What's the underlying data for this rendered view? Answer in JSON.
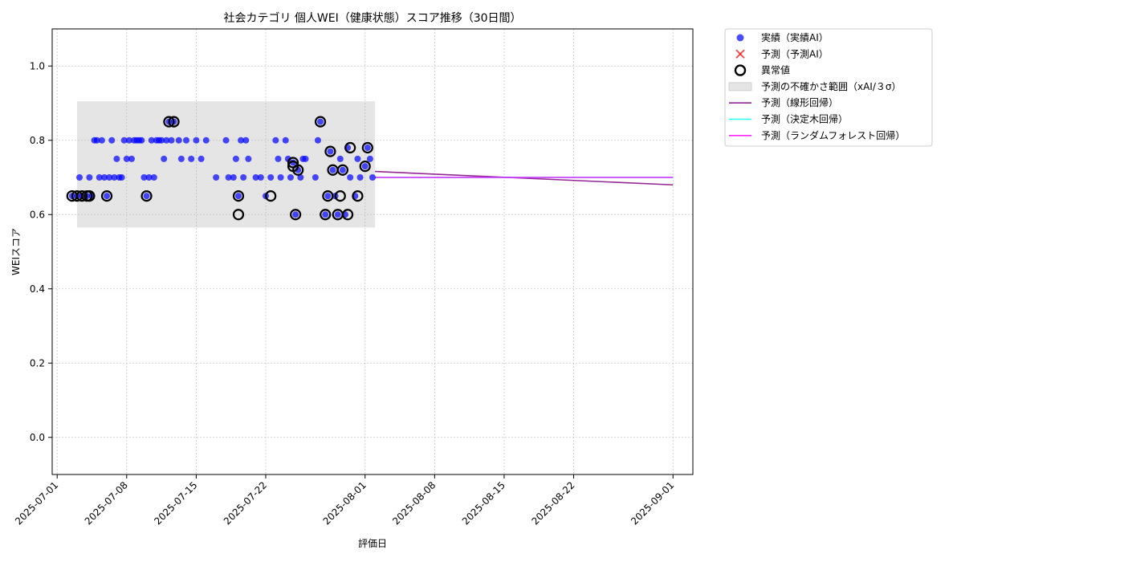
{
  "chart_data": {
    "type": "scatter",
    "title": "社会カテゴリ 個人WEI（健康状態）スコア推移（30日間）",
    "xlabel": "評価日",
    "ylabel": "WEIスコア",
    "xlim": [
      "2025-06-30T12:00",
      "2025-09-03T00:00"
    ],
    "ylim": [
      -0.1,
      1.1
    ],
    "y_ticks": [
      0.0,
      0.2,
      0.4,
      0.6,
      0.8,
      1.0
    ],
    "y_tick_labels": [
      "0.0",
      "0.2",
      "0.4",
      "0.6",
      "0.8",
      "1.0"
    ],
    "x_ticks": [
      "2025-07-01",
      "2025-07-08",
      "2025-07-15",
      "2025-07-22",
      "2025-08-01",
      "2025-08-08",
      "2025-08-15",
      "2025-08-22",
      "2025-09-01"
    ],
    "x_tick_labels": [
      "2025-07-01",
      "2025-07-08",
      "2025-07-15",
      "2025-07-22",
      "2025-08-01",
      "2025-08-08",
      "2025-08-15",
      "2025-08-22",
      "2025-09-01"
    ],
    "grid": true,
    "legend_position": "outside-right-top",
    "colors": {
      "actual": "#0000ff",
      "predicted": "#ff0000",
      "anomaly": "#000000",
      "band": "#d3d3d3",
      "linear": "#800080",
      "tree": "#00ffff",
      "forest": "#ff00ff"
    },
    "legend": [
      {
        "key": "actual",
        "label": "実績（実績AI）",
        "marker": "dot"
      },
      {
        "key": "predicted",
        "label": "予測（予測AI）",
        "marker": "x"
      },
      {
        "key": "anomaly",
        "label": "異常値",
        "marker": "ring"
      },
      {
        "key": "band",
        "label": "予測の不確かさ範囲（xAI/３σ）",
        "marker": "patch"
      },
      {
        "key": "linear",
        "label": "予測（線形回帰）",
        "marker": "line"
      },
      {
        "key": "tree",
        "label": "予測（決定木回帰）",
        "marker": "line"
      },
      {
        "key": "forest",
        "label": "予測（ランダムフォレスト回帰）",
        "marker": "line"
      }
    ],
    "uncertainty_band": {
      "x_start": "2025-07-03",
      "x_end": "2025-08-02",
      "y_low": 0.565,
      "y_high": 0.905
    },
    "series": [
      {
        "name": "実績（実績AI）",
        "type": "scatter",
        "points": [
          [
            "2025-07-02T12:00",
            0.65
          ],
          [
            "2025-07-03T00:00",
            0.65
          ],
          [
            "2025-07-03T06:00",
            0.7
          ],
          [
            "2025-07-03T12:00",
            0.65
          ],
          [
            "2025-07-04T00:00",
            0.65
          ],
          [
            "2025-07-04T06:00",
            0.7
          ],
          [
            "2025-07-04T12:00",
            0.65
          ],
          [
            "2025-07-04T18:00",
            0.8
          ],
          [
            "2025-07-05T00:00",
            0.8
          ],
          [
            "2025-07-05T06:00",
            0.7
          ],
          [
            "2025-07-05T12:00",
            0.8
          ],
          [
            "2025-07-05T18:00",
            0.7
          ],
          [
            "2025-07-06T00:00",
            0.65
          ],
          [
            "2025-07-06T06:00",
            0.7
          ],
          [
            "2025-07-06T12:00",
            0.8
          ],
          [
            "2025-07-06T18:00",
            0.7
          ],
          [
            "2025-07-07T00:00",
            0.75
          ],
          [
            "2025-07-07T06:00",
            0.7
          ],
          [
            "2025-07-07T12:00",
            0.7
          ],
          [
            "2025-07-07T18:00",
            0.8
          ],
          [
            "2025-07-08T00:00",
            0.75
          ],
          [
            "2025-07-08T06:00",
            0.8
          ],
          [
            "2025-07-08T12:00",
            0.75
          ],
          [
            "2025-07-08T18:00",
            0.8
          ],
          [
            "2025-07-09T00:00",
            0.8
          ],
          [
            "2025-07-09T06:00",
            0.8
          ],
          [
            "2025-07-09T12:00",
            0.8
          ],
          [
            "2025-07-09T18:00",
            0.7
          ],
          [
            "2025-07-10T00:00",
            0.65
          ],
          [
            "2025-07-10T06:00",
            0.7
          ],
          [
            "2025-07-10T12:00",
            0.8
          ],
          [
            "2025-07-10T18:00",
            0.7
          ],
          [
            "2025-07-11T00:00",
            0.8
          ],
          [
            "2025-07-11T06:00",
            0.8
          ],
          [
            "2025-07-11T12:00",
            0.8
          ],
          [
            "2025-07-11T18:00",
            0.75
          ],
          [
            "2025-07-12T00:00",
            0.8
          ],
          [
            "2025-07-12T06:00",
            0.85
          ],
          [
            "2025-07-12T12:00",
            0.8
          ],
          [
            "2025-07-12T18:00",
            0.85
          ],
          [
            "2025-07-13T06:00",
            0.8
          ],
          [
            "2025-07-13T12:00",
            0.75
          ],
          [
            "2025-07-14T00:00",
            0.8
          ],
          [
            "2025-07-14T12:00",
            0.75
          ],
          [
            "2025-07-15T00:00",
            0.8
          ],
          [
            "2025-07-15T12:00",
            0.75
          ],
          [
            "2025-07-16T00:00",
            0.8
          ],
          [
            "2025-07-17T00:00",
            0.7
          ],
          [
            "2025-07-18T00:00",
            0.8
          ],
          [
            "2025-07-18T06:00",
            0.7
          ],
          [
            "2025-07-18T18:00",
            0.7
          ],
          [
            "2025-07-19T00:00",
            0.75
          ],
          [
            "2025-07-19T06:00",
            0.65
          ],
          [
            "2025-07-19T12:00",
            0.8
          ],
          [
            "2025-07-19T18:00",
            0.7
          ],
          [
            "2025-07-20T00:00",
            0.8
          ],
          [
            "2025-07-20T06:00",
            0.75
          ],
          [
            "2025-07-21T00:00",
            0.7
          ],
          [
            "2025-07-21T12:00",
            0.7
          ],
          [
            "2025-07-22T00:00",
            0.65
          ],
          [
            "2025-07-22T12:00",
            0.7
          ],
          [
            "2025-07-23T00:00",
            0.8
          ],
          [
            "2025-07-23T06:00",
            0.75
          ],
          [
            "2025-07-23T12:00",
            0.7
          ],
          [
            "2025-07-24T00:00",
            0.8
          ],
          [
            "2025-07-24T06:00",
            0.75
          ],
          [
            "2025-07-24T12:00",
            0.7
          ],
          [
            "2025-07-24T18:00",
            0.74
          ],
          [
            "2025-07-25T00:00",
            0.6
          ],
          [
            "2025-07-25T06:00",
            0.72
          ],
          [
            "2025-07-25T12:00",
            0.7
          ],
          [
            "2025-07-25T18:00",
            0.75
          ],
          [
            "2025-07-26T00:00",
            0.75
          ],
          [
            "2025-07-27T00:00",
            0.7
          ],
          [
            "2025-07-27T06:00",
            0.8
          ],
          [
            "2025-07-27T12:00",
            0.85
          ],
          [
            "2025-07-28T00:00",
            0.6
          ],
          [
            "2025-07-28T06:00",
            0.65
          ],
          [
            "2025-07-28T12:00",
            0.77
          ],
          [
            "2025-07-28T18:00",
            0.72
          ],
          [
            "2025-07-29T00:00",
            0.65
          ],
          [
            "2025-07-29T06:00",
            0.6
          ],
          [
            "2025-07-29T12:00",
            0.75
          ],
          [
            "2025-07-29T18:00",
            0.72
          ],
          [
            "2025-07-30T00:00",
            0.6
          ],
          [
            "2025-07-30T06:00",
            0.78
          ],
          [
            "2025-07-30T12:00",
            0.7
          ],
          [
            "2025-07-31T00:00",
            0.65
          ],
          [
            "2025-07-31T06:00",
            0.75
          ],
          [
            "2025-07-31T12:00",
            0.7
          ],
          [
            "2025-08-01T00:00",
            0.73
          ],
          [
            "2025-08-01T06:00",
            0.78
          ],
          [
            "2025-08-01T12:00",
            0.75
          ],
          [
            "2025-08-01T18:00",
            0.7
          ]
        ]
      },
      {
        "name": "異常値",
        "type": "scatter",
        "points": [
          [
            "2025-07-02T12:00",
            0.65
          ],
          [
            "2025-07-03T00:00",
            0.65
          ],
          [
            "2025-07-03T12:00",
            0.65
          ],
          [
            "2025-07-04T00:00",
            0.65
          ],
          [
            "2025-07-04T06:00",
            0.65
          ],
          [
            "2025-07-06T00:00",
            0.65
          ],
          [
            "2025-07-10T00:00",
            0.65
          ],
          [
            "2025-07-12T06:00",
            0.85
          ],
          [
            "2025-07-12T18:00",
            0.85
          ],
          [
            "2025-07-19T06:00",
            0.65
          ],
          [
            "2025-07-19T06:00",
            0.6
          ],
          [
            "2025-07-22T12:00",
            0.65
          ],
          [
            "2025-07-24T18:00",
            0.74
          ],
          [
            "2025-07-24T18:00",
            0.73
          ],
          [
            "2025-07-25T00:00",
            0.6
          ],
          [
            "2025-07-25T06:00",
            0.72
          ],
          [
            "2025-07-27T12:00",
            0.85
          ],
          [
            "2025-07-28T00:00",
            0.6
          ],
          [
            "2025-07-28T06:00",
            0.65
          ],
          [
            "2025-07-28T12:00",
            0.77
          ],
          [
            "2025-07-28T18:00",
            0.72
          ],
          [
            "2025-07-29T06:00",
            0.6
          ],
          [
            "2025-07-29T12:00",
            0.65
          ],
          [
            "2025-07-29T18:00",
            0.72
          ],
          [
            "2025-07-30T06:00",
            0.6
          ],
          [
            "2025-07-30T12:00",
            0.78
          ],
          [
            "2025-07-31T06:00",
            0.65
          ],
          [
            "2025-08-01T00:00",
            0.73
          ],
          [
            "2025-08-01T06:00",
            0.78
          ]
        ]
      },
      {
        "name": "予測（線形回帰）",
        "type": "line",
        "points": [
          [
            "2025-08-02T00:00",
            0.716
          ],
          [
            "2025-09-01T00:00",
            0.68
          ]
        ]
      },
      {
        "name": "予測（決定木回帰）",
        "type": "line",
        "points": [
          [
            "2025-08-02T00:00",
            0.7
          ],
          [
            "2025-09-01T00:00",
            0.7
          ]
        ]
      },
      {
        "name": "予測（ランダムフォレスト回帰）",
        "type": "line",
        "points": [
          [
            "2025-08-02T00:00",
            0.7
          ],
          [
            "2025-09-01T00:00",
            0.7
          ]
        ]
      }
    ]
  }
}
